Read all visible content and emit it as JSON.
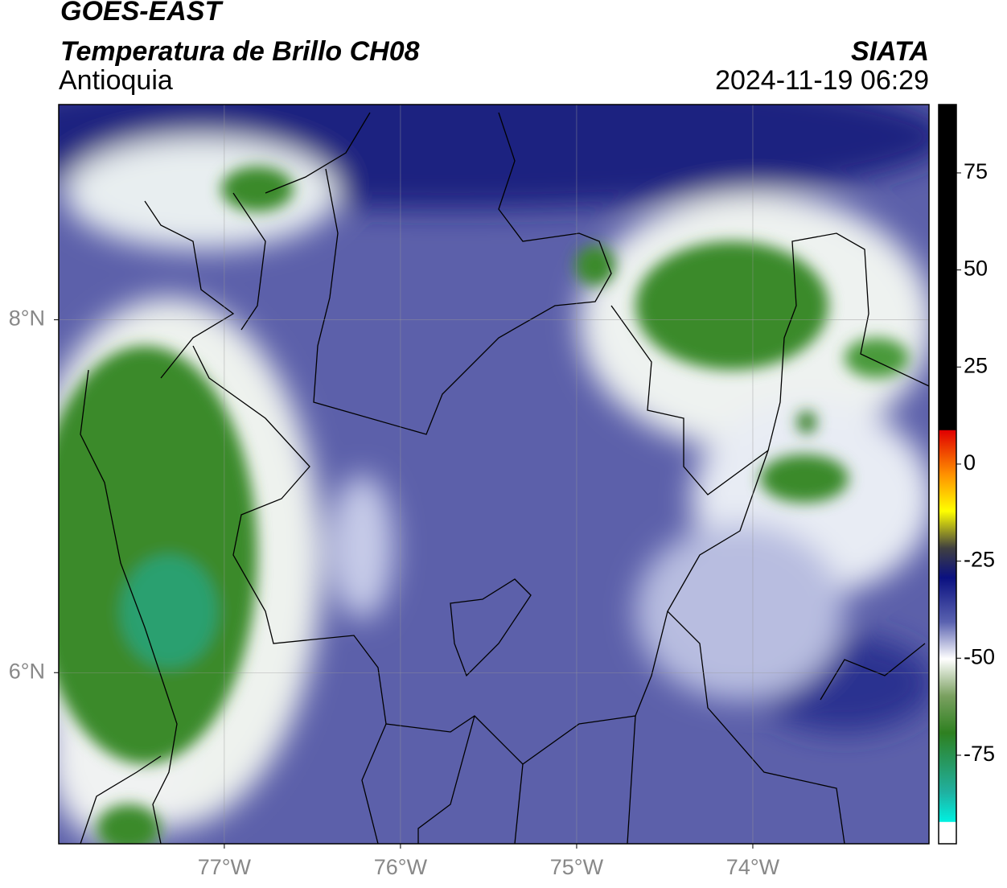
{
  "header": {
    "title": "GOES-EAST",
    "subtitle": "Temperatura de Brillo CH08",
    "region": "Antioquia",
    "source": "SIATA",
    "datetime": "2024-11-19 06:29"
  },
  "map": {
    "xlim": [
      -77.94,
      -73.0
    ],
    "ylim": [
      5.03,
      9.22
    ],
    "lon_ticks": [
      {
        "value": -77,
        "label": "77°W"
      },
      {
        "value": -76,
        "label": "76°W"
      },
      {
        "value": -75,
        "label": "75°W"
      },
      {
        "value": -74,
        "label": "74°W"
      }
    ],
    "lat_ticks": [
      {
        "value": 8,
        "label": "8°N"
      },
      {
        "value": 6,
        "label": "6°N"
      }
    ]
  },
  "colorbar": {
    "lim": [
      -97.8,
      92.6
    ],
    "ticks": [
      75,
      50,
      25,
      0,
      -25,
      -50,
      -75
    ]
  }
}
